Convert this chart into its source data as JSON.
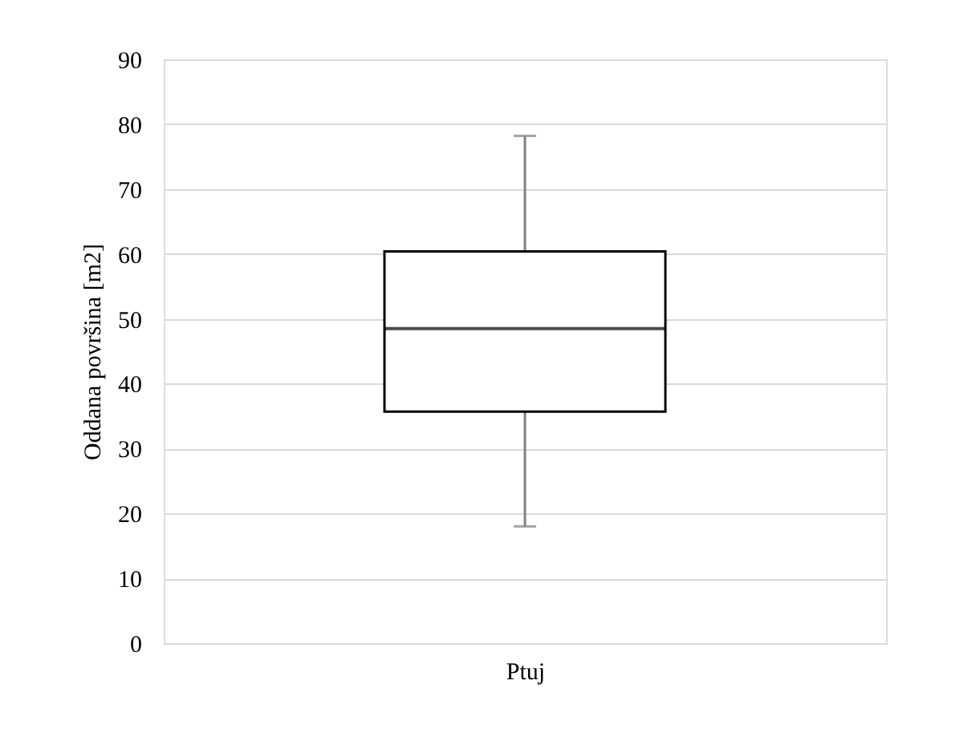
{
  "chart_data": {
    "type": "box",
    "ylabel": "Oddana površina [m2]",
    "categories": [
      "Ptuj"
    ],
    "boxes": [
      {
        "low": 18,
        "q1": 35.7,
        "median": 48.5,
        "q3": 60.4,
        "high": 78.2
      }
    ],
    "ylim": [
      0,
      90
    ],
    "yticks": [
      0,
      10,
      20,
      30,
      40,
      50,
      60,
      70,
      80,
      90
    ],
    "grid": "y"
  }
}
